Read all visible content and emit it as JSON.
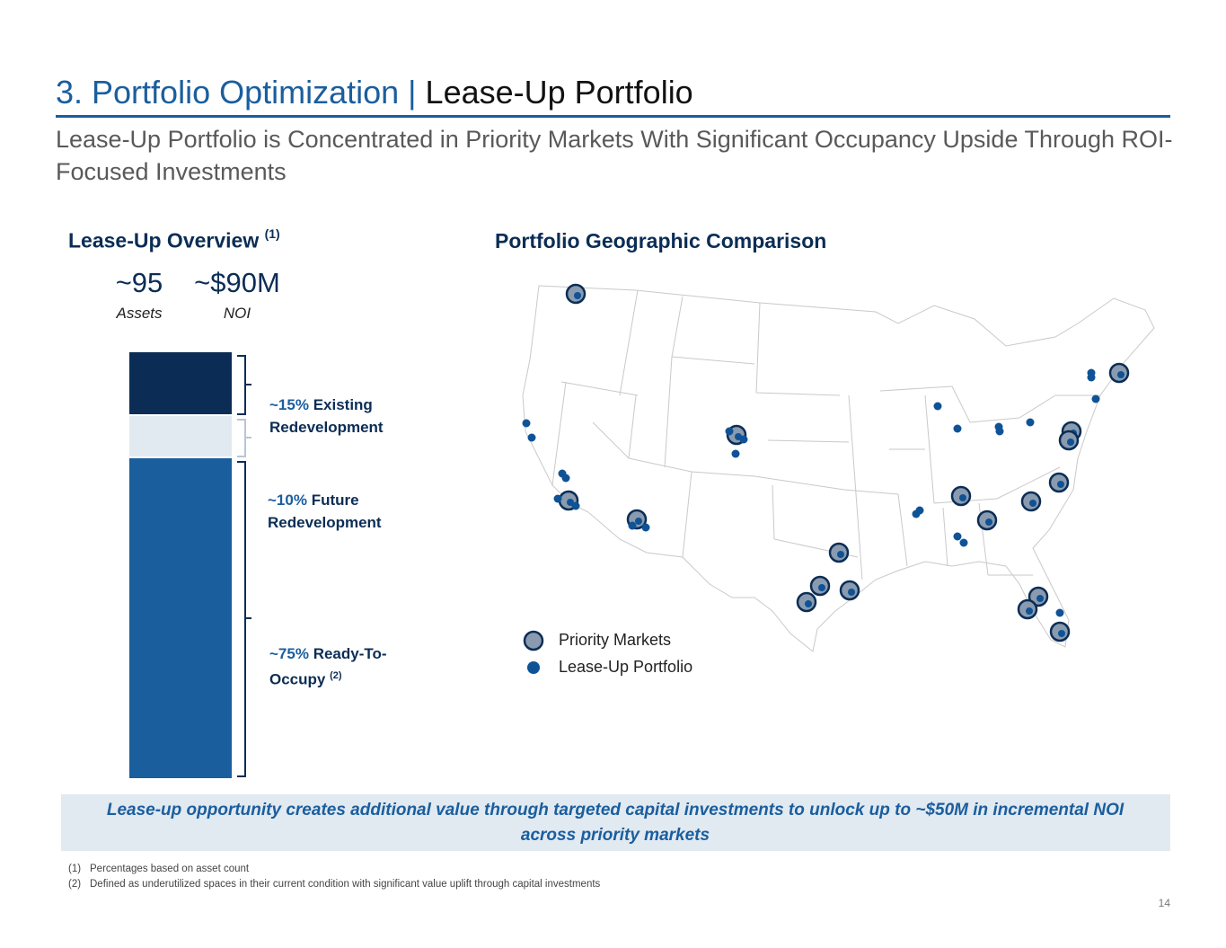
{
  "header": {
    "title_prefix": "3. Portfolio Optimization |",
    "title_main": "Lease-Up Portfolio",
    "subtitle": "Lease-Up Portfolio is Concentrated in Priority Markets With Significant Occupancy Upside Through ROI-Focused Investments"
  },
  "overview": {
    "heading": "Lease-Up Overview",
    "heading_note": "(1)",
    "kpis": [
      {
        "value": "~95",
        "label": "Assets"
      },
      {
        "value": "~$90M",
        "label": "NOI"
      }
    ],
    "segments": [
      {
        "pct": "~15%",
        "text": "Existing Redevelopment",
        "share": 0.15,
        "color": "#0b2d55"
      },
      {
        "pct": "~10%",
        "text": "Future Redevelopment",
        "share": 0.1,
        "color": "#e1e9f1"
      },
      {
        "pct": "~75%",
        "text": "Ready-To-Occupy",
        "note": "(2)",
        "share": 0.75,
        "color": "#1a5e9e"
      }
    ]
  },
  "map": {
    "heading": "Portfolio Geographic Comparison",
    "legend": [
      {
        "label": "Priority Markets",
        "icon": "priority-market-marker-icon"
      },
      {
        "label": "Lease-Up Portfolio",
        "icon": "lease-up-dot-icon"
      }
    ],
    "colors": {
      "priority_fill": "#8a9bb0",
      "priority_ring": "#0b2d55",
      "dot": "#0f5396"
    }
  },
  "callout": "Lease-up opportunity creates additional value through targeted capital investments to unlock up to ~$50M in incremental NOI across priority markets",
  "footnotes": [
    {
      "num": "(1)",
      "text": "Percentages based on asset count"
    },
    {
      "num": "(2)",
      "text": "Defined as underutilized spaces in their current condition with significant value uplift through capital investments"
    }
  ],
  "page_number": "14"
}
